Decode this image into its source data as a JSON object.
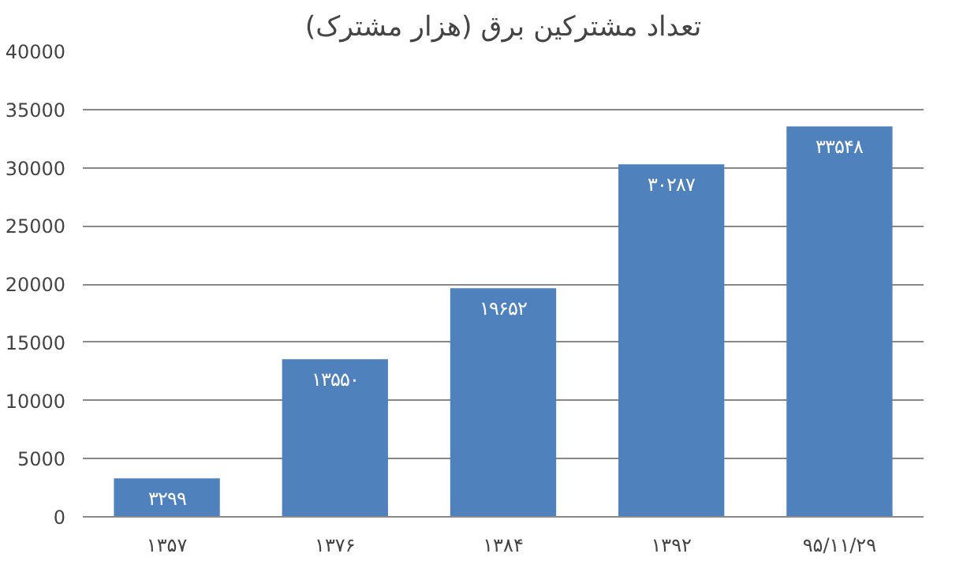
{
  "chart_data": {
    "type": "bar",
    "title": "تعداد مشترکین برق (هزار مشترک)",
    "categories": [
      "۱۳۵۷",
      "۱۳۷۶",
      "۱۳۸۴",
      "۱۳۹۲",
      "۹۵/۱۱/۲۹"
    ],
    "values": [
      3299,
      13550,
      19652,
      30287,
      33548
    ],
    "value_labels": [
      "۳۲۹۹",
      "۱۳۵۵۰",
      "۱۹۶۵۲",
      "۳۰۲۸۷",
      "۳۳۵۴۸"
    ],
    "color": "#4f81bd",
    "ylim": [
      0,
      40000
    ],
    "yticks": [
      0,
      5000,
      10000,
      15000,
      20000,
      25000,
      30000,
      35000,
      40000
    ],
    "grid": "y"
  }
}
